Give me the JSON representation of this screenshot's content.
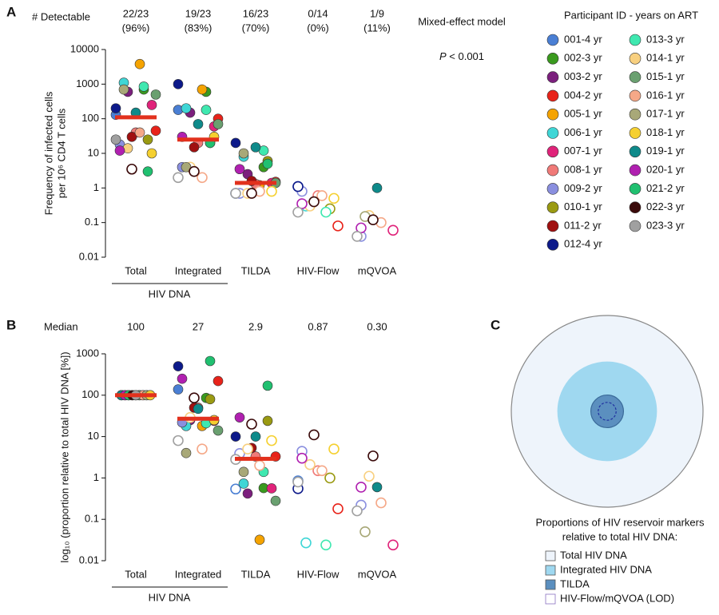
{
  "participants_title": "Participant ID - years on ART",
  "chart_data": [
    {
      "type": "dot",
      "panel": "A",
      "log_scale": true,
      "categories": [
        "Total",
        "Integrated",
        "TILDA",
        "HIV-Flow",
        "mQVOA"
      ],
      "group_label": "HIV DNA",
      "ylabel": [
        "Frequency of infected cells",
        "per 10⁶ CD4 T cells"
      ],
      "ylim": [
        0.01,
        10000
      ],
      "yticks": [
        0.01,
        0.1,
        1,
        10,
        100,
        1000,
        10000
      ],
      "detectable_label": "# Detectable",
      "detectable": [
        "22/23",
        "19/23",
        "16/23",
        "0/14",
        "1/9"
      ],
      "detectable_percent": [
        "(96%)",
        "(83%)",
        "(70%)",
        "(0%)",
        "(11%)"
      ],
      "annotation": [
        "Mixed-effect model"
      ],
      "p_symbol": "P",
      "p_value": " < 0.001",
      "medians": [
        110,
        25,
        1.4,
        null,
        null
      ],
      "median_color": "#e2311d",
      "series": [
        {
          "name": "001-4 yr",
          "color": "#4a7fd4",
          "values": [
            130,
            180,
            0.7,
            1.1,
            null
          ],
          "detected": [
            true,
            true,
            false,
            false,
            null
          ]
        },
        {
          "name": "002-3 yr",
          "color": "#3a9a1e",
          "values": [
            700,
            600,
            4,
            null,
            null
          ],
          "detected": [
            true,
            true,
            true,
            null,
            null
          ]
        },
        {
          "name": "003-2 yr",
          "color": "#7b1f7d",
          "values": [
            600,
            150,
            2.5,
            null,
            null
          ],
          "detected": [
            true,
            true,
            true,
            null,
            null
          ]
        },
        {
          "name": "004-2 yr",
          "color": "#e8231a",
          "values": [
            45,
            100,
            1.5,
            0.08,
            null
          ],
          "detected": [
            true,
            true,
            true,
            false,
            null
          ]
        },
        {
          "name": "005-1 yr",
          "color": "#f5a300",
          "values": [
            3800,
            700,
            1.2,
            null,
            null
          ],
          "detected": [
            true,
            true,
            true,
            null,
            null
          ]
        },
        {
          "name": "006-1 yr",
          "color": "#3fd6d6",
          "values": [
            1100,
            200,
            8,
            0.3,
            null
          ],
          "detected": [
            true,
            true,
            true,
            false,
            null
          ]
        },
        {
          "name": "007-1 yr",
          "color": "#e0237a",
          "values": [
            250,
            60,
            1.4,
            null,
            0.06
          ],
          "detected": [
            true,
            true,
            true,
            null,
            false
          ]
        },
        {
          "name": "008-1 yr",
          "color": "#f07a78",
          "values": [
            40,
            20,
            1.3,
            0.6,
            null
          ],
          "detected": [
            true,
            true,
            true,
            false,
            null
          ]
        },
        {
          "name": "009-2 yr",
          "color": "#8a8fdf",
          "values": [
            18,
            4,
            0.7,
            0.8,
            0.04
          ],
          "detected": [
            true,
            true,
            false,
            false,
            false
          ]
        },
        {
          "name": "010-1 yr",
          "color": "#9a9a12",
          "values": [
            25,
            20,
            6,
            0.25,
            null
          ],
          "detected": [
            true,
            true,
            true,
            false,
            null
          ]
        },
        {
          "name": "011-2 yr",
          "color": "#a01010",
          "values": [
            30,
            15,
            1.6,
            null,
            null
          ],
          "detected": [
            true,
            true,
            true,
            null,
            null
          ]
        },
        {
          "name": "012-4 yr",
          "color": "#0d1a8a",
          "values": [
            200,
            1000,
            20,
            1.1,
            null
          ],
          "detected": [
            true,
            true,
            true,
            false,
            null
          ]
        },
        {
          "name": "013-3 yr",
          "color": "#3fe8b0",
          "values": [
            850,
            180,
            12,
            0.2,
            null
          ],
          "detected": [
            true,
            true,
            true,
            false,
            null
          ]
        },
        {
          "name": "014-1 yr",
          "color": "#f8d080",
          "values": [
            14,
            4,
            0.7,
            0.3,
            0.16
          ],
          "detected": [
            true,
            false,
            false,
            false,
            false
          ]
        },
        {
          "name": "015-1 yr",
          "color": "#6aa070",
          "values": [
            500,
            70,
            1.4,
            null,
            null
          ],
          "detected": [
            true,
            true,
            true,
            null,
            null
          ]
        },
        {
          "name": "016-1 yr",
          "color": "#f5a888",
          "values": [
            40,
            2,
            0.8,
            0.6,
            0.1
          ],
          "detected": [
            true,
            false,
            false,
            false,
            false
          ]
        },
        {
          "name": "017-1 yr",
          "color": "#a8a878",
          "values": [
            700,
            4,
            10,
            null,
            0.15
          ],
          "detected": [
            true,
            true,
            true,
            null,
            false
          ]
        },
        {
          "name": "018-1 yr",
          "color": "#f5d030",
          "values": [
            10,
            30,
            0.8,
            0.5,
            null
          ],
          "detected": [
            true,
            true,
            false,
            false,
            null
          ]
        },
        {
          "name": "019-1 yr",
          "color": "#0e8a8a",
          "values": [
            150,
            70,
            15,
            null,
            1
          ],
          "detected": [
            true,
            true,
            true,
            null,
            true
          ]
        },
        {
          "name": "020-1 yr",
          "color": "#b020b0",
          "values": [
            12,
            30,
            3.5,
            0.35,
            0.07
          ],
          "detected": [
            true,
            true,
            true,
            false,
            false
          ]
        },
        {
          "name": "021-2 yr",
          "color": "#20c070",
          "values": [
            3,
            20,
            5,
            null,
            null
          ],
          "detected": [
            true,
            true,
            true,
            null,
            null
          ]
        },
        {
          "name": "022-3 yr",
          "color": "#3a0a0a",
          "values": [
            3.5,
            3,
            0.7,
            0.4,
            0.12
          ],
          "detected": [
            false,
            false,
            false,
            false,
            false
          ]
        },
        {
          "name": "023-3 yr",
          "color": "#a0a0a0",
          "values": [
            25,
            2,
            0.7,
            0.2,
            0.04
          ],
          "detected": [
            true,
            false,
            false,
            false,
            false
          ]
        }
      ]
    },
    {
      "type": "dot",
      "panel": "B",
      "log_scale": true,
      "categories": [
        "Total",
        "Integrated",
        "TILDA",
        "HIV-Flow",
        "mQVOA"
      ],
      "group_label": "HIV DNA",
      "ylabel": [
        "log₁₀ (proportion relative to total HIV DNA [%])"
      ],
      "ylim": [
        0.01,
        1000
      ],
      "yticks": [
        0.01,
        0.1,
        1,
        10,
        100,
        1000
      ],
      "median_label": "Median",
      "medians": [
        100,
        27,
        2.9,
        0.87,
        {
          "value": 0.3,
          "label": "0.30"
        }
      ],
      "median_lines": [
        true,
        true,
        true,
        false,
        false
      ],
      "median_color": "#e2311d",
      "series": [
        {
          "color": "#4a7fd4",
          "values": [
            100,
            138,
            0.54,
            0.85,
            null
          ],
          "detected": [
            true,
            true,
            false,
            false,
            null
          ]
        },
        {
          "color": "#3a9a1e",
          "values": [
            100,
            86,
            0.57,
            null,
            null
          ],
          "detected": [
            true,
            true,
            true,
            null,
            null
          ]
        },
        {
          "color": "#7b1f7d",
          "values": [
            100,
            25,
            0.42,
            null,
            null
          ],
          "detected": [
            true,
            true,
            true,
            null,
            null
          ]
        },
        {
          "color": "#e8231a",
          "values": [
            100,
            220,
            3.3,
            0.18,
            null
          ],
          "detected": [
            true,
            true,
            true,
            false,
            null
          ]
        },
        {
          "color": "#f5a300",
          "values": [
            100,
            18,
            0.032,
            null,
            null
          ],
          "detected": [
            true,
            true,
            true,
            null,
            null
          ]
        },
        {
          "color": "#3fd6d6",
          "values": [
            100,
            18,
            0.73,
            0.027,
            null
          ],
          "detected": [
            true,
            true,
            true,
            false,
            null
          ]
        },
        {
          "color": "#e0237a",
          "values": [
            100,
            24,
            0.56,
            null,
            0.024
          ],
          "detected": [
            true,
            true,
            true,
            null,
            false
          ]
        },
        {
          "color": "#f07a78",
          "values": [
            100,
            50,
            3.3,
            1.5,
            null
          ],
          "detected": [
            true,
            true,
            true,
            false,
            null
          ]
        },
        {
          "color": "#8a8fdf",
          "values": [
            100,
            22,
            3.9,
            4.4,
            0.22
          ],
          "detected": [
            true,
            true,
            false,
            false,
            false
          ]
        },
        {
          "color": "#9a9a12",
          "values": [
            100,
            80,
            24,
            1,
            null
          ],
          "detected": [
            true,
            true,
            true,
            false,
            null
          ]
        },
        {
          "color": "#a01010",
          "values": [
            100,
            50,
            5.3,
            null,
            null
          ],
          "detected": [
            true,
            true,
            true,
            null,
            null
          ]
        },
        {
          "color": "#0d1a8a",
          "values": [
            100,
            500,
            10,
            0.55,
            null
          ],
          "detected": [
            true,
            true,
            true,
            false,
            null
          ]
        },
        {
          "color": "#3fe8b0",
          "values": [
            100,
            21,
            1.4,
            0.024,
            null
          ],
          "detected": [
            true,
            true,
            true,
            false,
            null
          ]
        },
        {
          "color": "#f8d080",
          "values": [
            100,
            29,
            5,
            2.1,
            1.1
          ],
          "detected": [
            true,
            false,
            false,
            false,
            false
          ]
        },
        {
          "color": "#6aa070",
          "values": [
            100,
            14,
            0.28,
            null,
            null
          ],
          "detected": [
            true,
            true,
            true,
            null,
            null
          ]
        },
        {
          "color": "#f5a888",
          "values": [
            100,
            5,
            2,
            1.5,
            0.25
          ],
          "detected": [
            true,
            false,
            false,
            false,
            false
          ]
        },
        {
          "color": "#a8a878",
          "values": [
            100,
            4,
            1.4,
            null,
            0.05
          ],
          "detected": [
            true,
            true,
            true,
            null,
            false
          ]
        },
        {
          "color": "#f5d030",
          "values": [
            100,
            25,
            8,
            5,
            null
          ],
          "detected": [
            true,
            true,
            false,
            false,
            null
          ]
        },
        {
          "color": "#0e8a8a",
          "values": [
            100,
            47,
            10,
            null,
            0.6
          ],
          "detected": [
            true,
            true,
            true,
            null,
            true
          ]
        },
        {
          "color": "#b020b0",
          "values": [
            100,
            250,
            29,
            3,
            0.6
          ],
          "detected": [
            true,
            true,
            true,
            false,
            false
          ]
        },
        {
          "color": "#20c070",
          "values": [
            100,
            670,
            170,
            null,
            null
          ],
          "detected": [
            true,
            true,
            true,
            null,
            null
          ]
        },
        {
          "color": "#3a0a0a",
          "values": [
            100,
            86,
            20,
            11,
            3.4
          ],
          "detected": [
            true,
            false,
            false,
            false,
            false
          ]
        },
        {
          "color": "#a0a0a0",
          "values": [
            100,
            8,
            2.8,
            0.8,
            0.16
          ],
          "detected": [
            true,
            false,
            false,
            false,
            false
          ]
        }
      ]
    },
    {
      "type": "nested-circles",
      "panel": "C",
      "legend_title": [
        "Proportions of HIV reservoir markers",
        "relative to total HIV DNA:"
      ],
      "labels": [
        "Total HIV DNA",
        "Integrated HIV DNA",
        "TILDA",
        "HIV-Flow/mQVOA (LOD)"
      ],
      "values": [
        100,
        27,
        2.9,
        0.87
      ],
      "colors": [
        "#eef4fb",
        "#9fd8f0",
        "#5b8fbf",
        "#2030a0"
      ]
    }
  ]
}
